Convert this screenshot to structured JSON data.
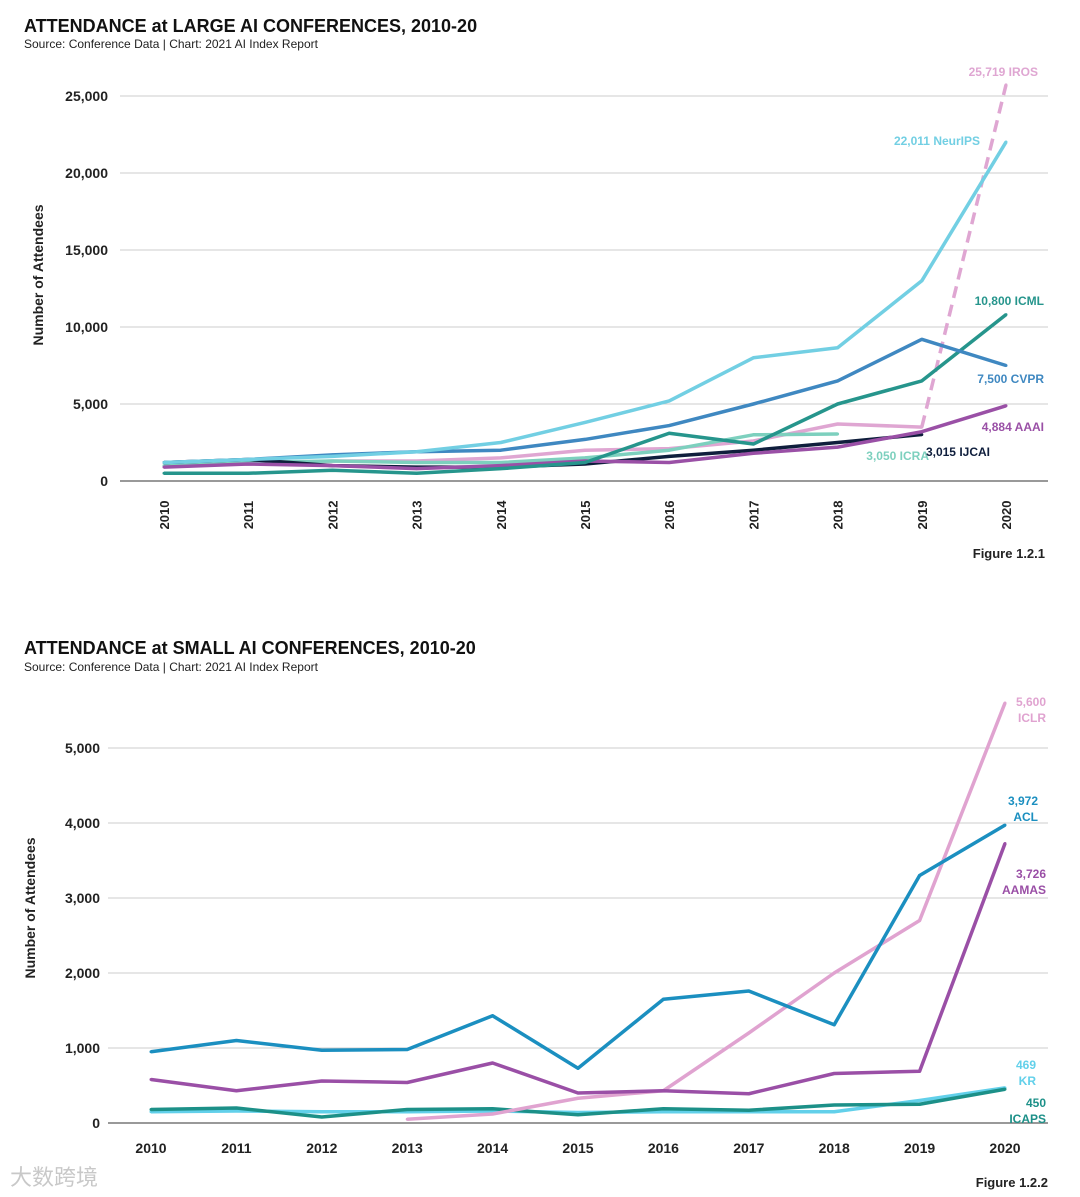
{
  "watermark": "大数跨境",
  "chart_data": [
    {
      "type": "line",
      "title": "ATTENDANCE at LARGE AI CONFERENCES, 2010-20",
      "subtitle": "Source: Conference Data | Chart: 2021 AI Index Report",
      "figure": "Figure 1.2.1",
      "xlabel": "",
      "ylabel": "Number of Attendees",
      "ylim": [
        0,
        26000
      ],
      "yticks": [
        0,
        5000,
        10000,
        15000,
        20000,
        25000
      ],
      "ytick_labels": [
        "0",
        "5,000",
        "10,000",
        "15,000",
        "20,000",
        "25,000"
      ],
      "x": [
        2010,
        2011,
        2012,
        2013,
        2014,
        2015,
        2016,
        2017,
        2018,
        2019,
        2020
      ],
      "grid": true,
      "series": [
        {
          "name": "IROS",
          "label": "25,719 IROS",
          "color": "#dfa6d2",
          "dashed_last": true,
          "values": [
            1000,
            1100,
            1300,
            1300,
            1500,
            2000,
            2100,
            2600,
            3700,
            3500,
            25719
          ]
        },
        {
          "name": "ICRA",
          "label": "3,050 ICRA",
          "color": "#7dd0be",
          "values": [
            1000,
            1200,
            1300,
            1200,
            1200,
            1500,
            2000,
            3000,
            3050,
            null,
            null
          ]
        },
        {
          "name": "IJCAI",
          "label": "3,015 IJCAI",
          "color": "#0f1e3c",
          "values": [
            1200,
            1400,
            1000,
            900,
            900,
            1100,
            1600,
            2000,
            2500,
            3015,
            null
          ]
        },
        {
          "name": "AAAI",
          "label": "4,884 AAAI",
          "color": "#9a50a6",
          "values": [
            900,
            1100,
            1000,
            800,
            1000,
            1300,
            1200,
            1800,
            2200,
            3200,
            4884
          ]
        },
        {
          "name": "ICML",
          "label": "10,800 ICML",
          "color": "#26958c",
          "values": [
            500,
            500,
            700,
            500,
            800,
            1200,
            3100,
            2400,
            5000,
            6500,
            10800
          ]
        },
        {
          "name": "CVPR",
          "label": "7,500 CVPR",
          "color": "#3f88c1",
          "values": [
            1200,
            1400,
            1700,
            1900,
            2000,
            2700,
            3600,
            5000,
            6500,
            9200,
            7500
          ]
        },
        {
          "name": "NeurIPS",
          "label": "22,011 NeurIPS",
          "color": "#72cfe3",
          "values": [
            1200,
            1400,
            1600,
            1900,
            2500,
            3800,
            5200,
            8000,
            8650,
            13000,
            22011
          ]
        }
      ]
    },
    {
      "type": "line",
      "title": "ATTENDANCE at SMALL AI CONFERENCES, 2010-20",
      "subtitle": "Source: Conference Data | Chart: 2021 AI Index Report",
      "figure": "Figure 1.2.2",
      "xlabel": "",
      "ylabel": "Number of Attendees",
      "ylim": [
        0,
        5800
      ],
      "yticks": [
        0,
        1000,
        2000,
        3000,
        4000,
        5000
      ],
      "ytick_labels": [
        "0",
        "1,000",
        "2,000",
        "3,000",
        "4,000",
        "5,000"
      ],
      "x": [
        2010,
        2011,
        2012,
        2013,
        2014,
        2015,
        2016,
        2017,
        2018,
        2019,
        2020
      ],
      "grid": true,
      "series": [
        {
          "name": "KR",
          "label": [
            "469",
            "KR"
          ],
          "color": "#62d0ea",
          "values": [
            150,
            160,
            150,
            150,
            160,
            140,
            150,
            150,
            150,
            300,
            469
          ]
        },
        {
          "name": "ICAPS",
          "label": [
            "450",
            "ICAPS"
          ],
          "color": "#1c9088",
          "values": [
            180,
            200,
            80,
            180,
            190,
            110,
            190,
            170,
            240,
            250,
            450
          ]
        },
        {
          "name": "ICLR",
          "label": [
            "5,600",
            "ICLR"
          ],
          "color": "#e0a3d0",
          "values": [
            null,
            null,
            null,
            50,
            120,
            330,
            430,
            1200,
            2000,
            2700,
            5600
          ]
        },
        {
          "name": "AAMAS",
          "label": [
            "3,726",
            "AAMAS"
          ],
          "color": "#9a4fa6",
          "values": [
            580,
            430,
            560,
            540,
            800,
            400,
            430,
            390,
            660,
            690,
            3726
          ]
        },
        {
          "name": "ACL",
          "label": [
            "3,972",
            "ACL"
          ],
          "color": "#1b8fc0",
          "values": [
            950,
            1100,
            970,
            980,
            1430,
            730,
            1650,
            1760,
            1310,
            3300,
            3972
          ]
        }
      ]
    }
  ]
}
